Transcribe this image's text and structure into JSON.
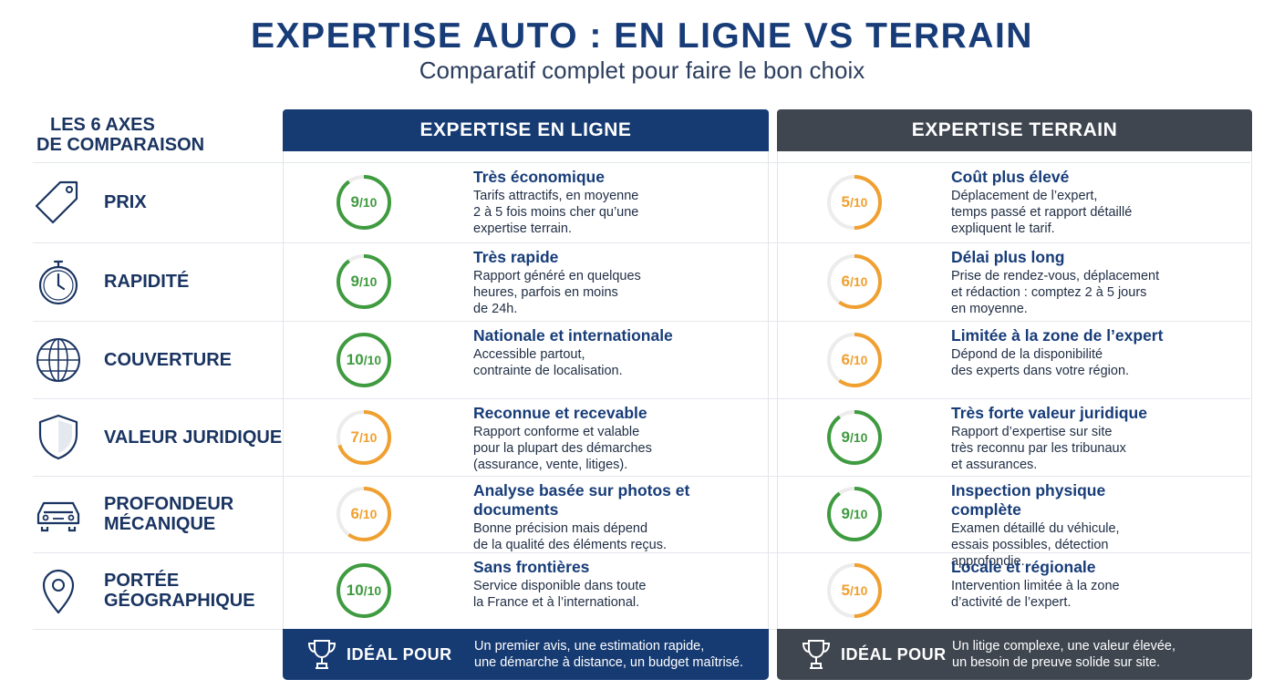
{
  "title": "EXPERTISE AUTO : EN LIGNE VS TERRAIN",
  "subtitle": "Comparatif complet pour faire le bon choix",
  "axes_heading": {
    "line1": "LES 6 AXES",
    "line2": "DE COMPARAISON"
  },
  "columns": {
    "online": "EXPERTISE EN LIGNE",
    "terrain": "EXPERTISE TERRAIN"
  },
  "colors": {
    "navy": "#163b73",
    "slate": "#3f4650",
    "green": "#3f9b3f",
    "orange": "#f0a030"
  },
  "score_denominator": "/10",
  "rows": [
    {
      "icon": "price-tag-icon",
      "label_lines": [
        "PRIX"
      ],
      "online": {
        "score": 9,
        "color": "green",
        "headline": "Très économique",
        "lines": [
          "Tarifs attractifs, en moyenne",
          "2 à 5 fois moins cher qu’une",
          "expertise terrain."
        ]
      },
      "terrain": {
        "score": 5,
        "color": "orange",
        "headline": "Coût plus élevé",
        "lines": [
          "Déplacement de l’expert,",
          "temps passé et rapport détaillé",
          "expliquent le tarif."
        ]
      }
    },
    {
      "icon": "stopwatch-icon",
      "label_lines": [
        "RAPIDITÉ"
      ],
      "online": {
        "score": 9,
        "color": "green",
        "headline": "Très rapide",
        "lines": [
          "Rapport généré en quelques",
          "heures, parfois en moins",
          "de 24h."
        ]
      },
      "terrain": {
        "score": 6,
        "color": "orange",
        "headline": "Délai plus long",
        "lines": [
          "Prise de rendez-vous, déplacement",
          "et rédaction : comptez 2 à 5 jours",
          "en moyenne."
        ]
      }
    },
    {
      "icon": "globe-icon",
      "label_lines": [
        "COUVERTURE"
      ],
      "online": {
        "score": 10,
        "color": "green",
        "headline": "Nationale et internationale",
        "lines": [
          "Accessible partout,",
          "contrainte de localisation."
        ]
      },
      "terrain": {
        "score": 6,
        "color": "orange",
        "headline": "Limitée à la zone de l’expert",
        "lines": [
          "Dépond de la disponibilité",
          "des experts dans votre région."
        ]
      }
    },
    {
      "icon": "shield-icon",
      "label_lines": [
        "VALEUR JURIDIQUE"
      ],
      "online": {
        "score": 7,
        "color": "orange",
        "headline": "Reconnue et recevable",
        "lines": [
          "Rapport conforme et valable",
          "pour la plupart des démarches",
          "(assurance, vente, litiges)."
        ]
      },
      "terrain": {
        "score": 9,
        "color": "green",
        "headline": "Très forte valeur juridique",
        "lines": [
          "Rapport d’expertise sur site",
          "très reconnu par les tribunaux",
          "et assurances."
        ]
      }
    },
    {
      "icon": "car-icon",
      "label_lines": [
        "PROFONDEUR",
        "MÉCANIQUE"
      ],
      "online": {
        "score": 6,
        "color": "orange",
        "headline": "Analyse basée sur photos et documents",
        "lines": [
          "Bonne précision mais dépend",
          "de la qualité des éléments reçus."
        ]
      },
      "terrain": {
        "score": 9,
        "color": "green",
        "headline": "Inspection physique complète",
        "lines": [
          "Examen détaillé du véhicule,",
          "essais possibles, détection",
          "approfondie."
        ]
      }
    },
    {
      "icon": "map-pin-icon",
      "label_lines": [
        "PORTÉE",
        "GÉOGRAPHIQUE"
      ],
      "online": {
        "score": 10,
        "color": "green",
        "headline": "Sans frontières",
        "lines": [
          "Service disponible dans toute",
          "la France et à l’international."
        ]
      },
      "terrain": {
        "score": 5,
        "color": "orange",
        "headline": "Locale et régionale",
        "lines": [
          "Intervention limitée à la zone",
          "d’activité de l’expert."
        ]
      }
    }
  ],
  "ideal": {
    "label": "IDÉAL POUR",
    "online_lines": [
      "Un premier avis, une estimation rapide,",
      "une démarche à distance, un budget maîtrisé."
    ],
    "terrain_lines": [
      "Un litige complexe, une valeur élevée,",
      "un besoin de preuve solide sur site."
    ]
  }
}
